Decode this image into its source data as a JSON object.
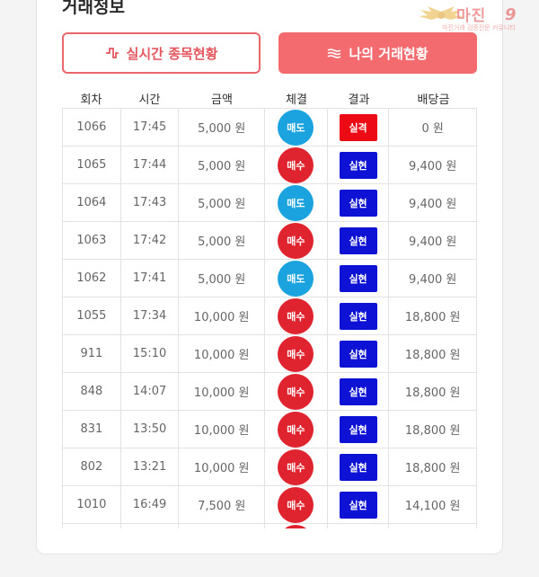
{
  "section": {
    "title": "거래정보"
  },
  "watermark": {
    "brand": "마진",
    "tagline": "마진거래 검증전문 커뮤니티"
  },
  "buttons": {
    "live_label": "실시간 종목현황",
    "mine_label": "나의 거래현황"
  },
  "table": {
    "headers": [
      "회차",
      "시간",
      "금액",
      "체결",
      "결과",
      "배당금"
    ],
    "rows": [
      {
        "round": "1066",
        "time": "17:45",
        "amount": "5,000 원",
        "trade": "매도",
        "result": "실격",
        "payout": "0 원"
      },
      {
        "round": "1065",
        "time": "17:44",
        "amount": "5,000 원",
        "trade": "매수",
        "result": "실현",
        "payout": "9,400 원"
      },
      {
        "round": "1064",
        "time": "17:43",
        "amount": "5,000 원",
        "trade": "매도",
        "result": "실현",
        "payout": "9,400 원"
      },
      {
        "round": "1063",
        "time": "17:42",
        "amount": "5,000 원",
        "trade": "매수",
        "result": "실현",
        "payout": "9,400 원"
      },
      {
        "round": "1062",
        "time": "17:41",
        "amount": "5,000 원",
        "trade": "매도",
        "result": "실현",
        "payout": "9,400 원"
      },
      {
        "round": "1055",
        "time": "17:34",
        "amount": "10,000 원",
        "trade": "매수",
        "result": "실현",
        "payout": "18,800 원"
      },
      {
        "round": "911",
        "time": "15:10",
        "amount": "10,000 원",
        "trade": "매수",
        "result": "실현",
        "payout": "18,800 원"
      },
      {
        "round": "848",
        "time": "14:07",
        "amount": "10,000 원",
        "trade": "매수",
        "result": "실현",
        "payout": "18,800 원"
      },
      {
        "round": "831",
        "time": "13:50",
        "amount": "10,000 원",
        "trade": "매수",
        "result": "실현",
        "payout": "18,800 원"
      },
      {
        "round": "802",
        "time": "13:21",
        "amount": "10,000 원",
        "trade": "매수",
        "result": "실현",
        "payout": "18,800 원"
      },
      {
        "round": "1010",
        "time": "16:49",
        "amount": "7,500 원",
        "trade": "매수",
        "result": "실현",
        "payout": "14,100 원"
      },
      {
        "round": "",
        "time": "",
        "amount": "",
        "trade": "매수",
        "result": "",
        "payout": ""
      }
    ]
  },
  "colors": {
    "sell": "#1aa3de",
    "buy": "#e0242f",
    "win": "#0d12d4",
    "lose": "#ec0b14",
    "accent": "#f46b6f"
  }
}
